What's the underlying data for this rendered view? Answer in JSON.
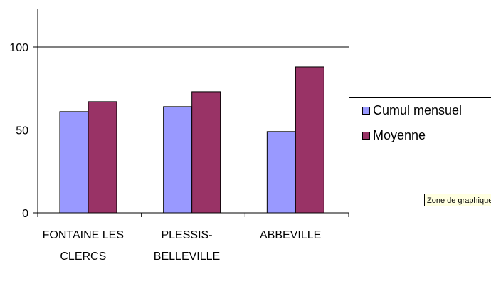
{
  "chart_data": {
    "type": "bar",
    "categories": [
      [
        "FONTAINE LES",
        "CLERCS"
      ],
      [
        "PLESSIS-",
        "BELLEVILLE"
      ],
      [
        "ABBEVILLE"
      ]
    ],
    "series": [
      {
        "name": "Cumul mensuel",
        "values": [
          61,
          64,
          49
        ],
        "color": "#9999ff"
      },
      {
        "name": "Moyenne",
        "values": [
          67,
          73,
          88
        ],
        "color": "#993366"
      }
    ],
    "ylim": [
      0,
      120
    ],
    "yticks": [
      0,
      50,
      100
    ],
    "grid": true,
    "legend_position": "right",
    "title": "",
    "xlabel": "",
    "ylabel": ""
  },
  "legend": {
    "items": [
      {
        "label": "Cumul mensuel",
        "color": "#9999ff"
      },
      {
        "label": "Moyenne",
        "color": "#993366"
      }
    ]
  },
  "tooltip": {
    "text": "Zone de graphique"
  }
}
